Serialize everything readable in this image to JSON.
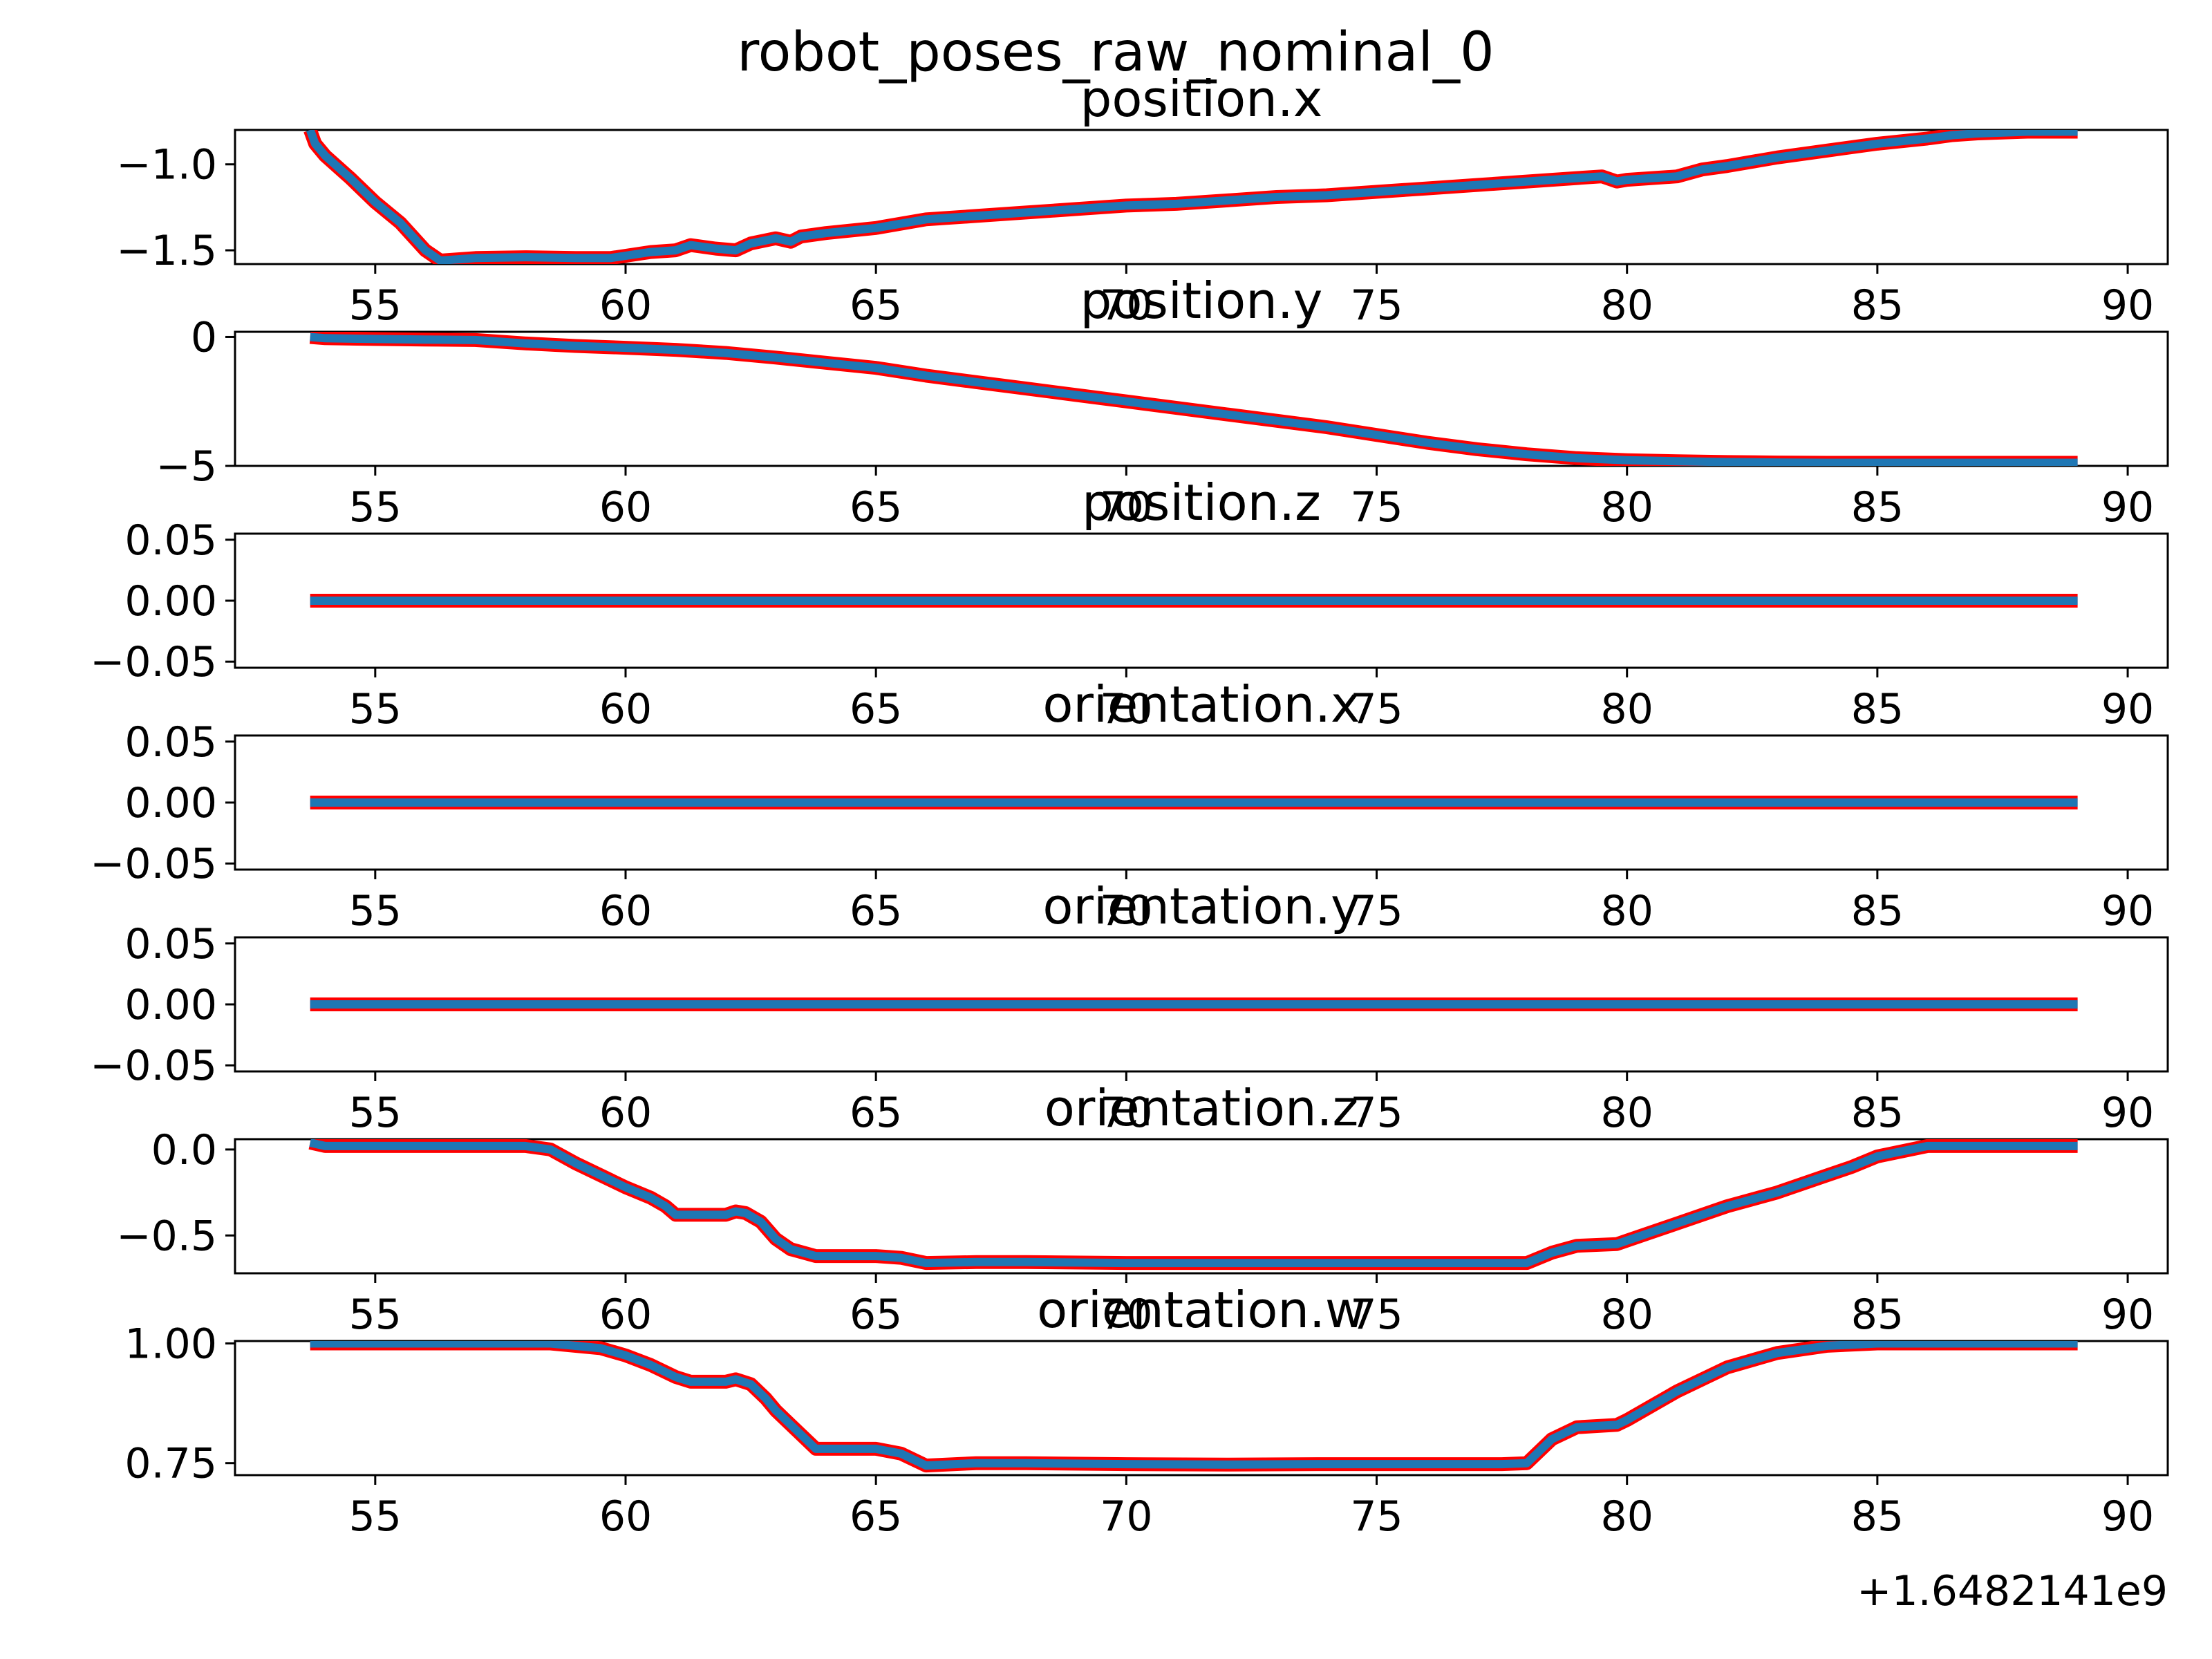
{
  "figure": {
    "suptitle": "robot_poses_raw_nominal_0",
    "x_offset_label": "+1.6482141e9"
  },
  "style": {
    "line_color": "#1f77b4",
    "outline_color": "#ff0000",
    "axes_color": "#000000",
    "background": "#ffffff"
  },
  "chart_data": [
    {
      "type": "line",
      "title": "position.x",
      "xlim": [
        52.2,
        90.8
      ],
      "ylim": [
        -1.58,
        -0.8
      ],
      "xticks": [
        55,
        60,
        65,
        70,
        75,
        80,
        85,
        90
      ],
      "yticks": [
        -1.0,
        -1.5
      ],
      "ytick_labels": [
        "−1.0",
        "−1.5"
      ],
      "series": [
        {
          "x": [
            53.7,
            53.8,
            54.0,
            54.5,
            55.0,
            55.5,
            56.0,
            56.3,
            57.0,
            58.0,
            59.0,
            59.7,
            60.5,
            61.0,
            61.3,
            61.8,
            62.2,
            62.5,
            63.0,
            63.3,
            63.5,
            64.0,
            65.0,
            66.0,
            67.0,
            68.0,
            69.0,
            70.0,
            71.0,
            72.0,
            73.0,
            74.0,
            75.0,
            76.0,
            77.0,
            78.0,
            79.0,
            79.5,
            79.8,
            80.0,
            81.0,
            81.5,
            82.0,
            83.0,
            84.0,
            85.0,
            86.0,
            86.5,
            87.0,
            88.0,
            89.0
          ],
          "y": [
            -0.8,
            -0.88,
            -0.95,
            -1.08,
            -1.22,
            -1.34,
            -1.5,
            -1.56,
            -1.545,
            -1.54,
            -1.545,
            -1.545,
            -1.51,
            -1.5,
            -1.47,
            -1.49,
            -1.5,
            -1.46,
            -1.43,
            -1.45,
            -1.42,
            -1.4,
            -1.37,
            -1.32,
            -1.3,
            -1.28,
            -1.26,
            -1.24,
            -1.23,
            -1.21,
            -1.19,
            -1.18,
            -1.16,
            -1.14,
            -1.12,
            -1.1,
            -1.08,
            -1.07,
            -1.1,
            -1.09,
            -1.07,
            -1.03,
            -1.01,
            -0.96,
            -0.92,
            -0.88,
            -0.85,
            -0.83,
            -0.82,
            -0.81,
            -0.81
          ]
        }
      ]
    },
    {
      "type": "line",
      "title": "position.y",
      "xlim": [
        52.2,
        90.8
      ],
      "ylim": [
        -5.0,
        0.2
      ],
      "xticks": [
        55,
        60,
        65,
        70,
        75,
        80,
        85,
        90
      ],
      "yticks": [
        0,
        -5
      ],
      "ytick_labels": [
        "0",
        "−5"
      ],
      "series": [
        {
          "x": [
            53.7,
            54.0,
            55.0,
            56.0,
            57.0,
            58.0,
            59.0,
            60.0,
            61.0,
            62.0,
            63.0,
            64.0,
            65.0,
            66.0,
            67.0,
            68.0,
            69.0,
            70.0,
            71.0,
            72.0,
            73.0,
            74.0,
            75.0,
            76.0,
            77.0,
            78.0,
            79.0,
            80.0,
            81.0,
            82.0,
            83.0,
            84.0,
            85.0,
            86.0,
            87.0,
            88.0,
            89.0
          ],
          "y": [
            0.0,
            -0.05,
            -0.08,
            -0.1,
            -0.12,
            -0.25,
            -0.35,
            -0.42,
            -0.5,
            -0.62,
            -0.8,
            -1.0,
            -1.2,
            -1.5,
            -1.75,
            -2.0,
            -2.25,
            -2.5,
            -2.75,
            -3.0,
            -3.25,
            -3.5,
            -3.8,
            -4.1,
            -4.35,
            -4.55,
            -4.7,
            -4.78,
            -4.82,
            -4.85,
            -4.87,
            -4.88,
            -4.88,
            -4.88,
            -4.88,
            -4.88,
            -4.88
          ]
        }
      ]
    },
    {
      "type": "line",
      "title": "position.z",
      "xlim": [
        52.2,
        90.8
      ],
      "ylim": [
        -0.055,
        0.055
      ],
      "xticks": [
        55,
        60,
        65,
        70,
        75,
        80,
        85,
        90
      ],
      "yticks": [
        0.05,
        0.0,
        -0.05
      ],
      "ytick_labels": [
        "0.05",
        "0.00",
        "−0.05"
      ],
      "series": [
        {
          "x": [
            53.7,
            89.0
          ],
          "y": [
            0.0,
            0.0
          ]
        }
      ]
    },
    {
      "type": "line",
      "title": "orientation.x",
      "xlim": [
        52.2,
        90.8
      ],
      "ylim": [
        -0.055,
        0.055
      ],
      "xticks": [
        55,
        60,
        65,
        70,
        75,
        80,
        85,
        90
      ],
      "yticks": [
        0.05,
        0.0,
        -0.05
      ],
      "ytick_labels": [
        "0.05",
        "0.00",
        "−0.05"
      ],
      "series": [
        {
          "x": [
            53.7,
            89.0
          ],
          "y": [
            0.0,
            0.0
          ]
        }
      ]
    },
    {
      "type": "line",
      "title": "orientation.y",
      "xlim": [
        52.2,
        90.8
      ],
      "ylim": [
        -0.055,
        0.055
      ],
      "xticks": [
        55,
        60,
        65,
        70,
        75,
        80,
        85,
        90
      ],
      "yticks": [
        0.05,
        0.0,
        -0.05
      ],
      "ytick_labels": [
        "0.05",
        "0.00",
        "−0.05"
      ],
      "series": [
        {
          "x": [
            53.7,
            89.0
          ],
          "y": [
            0.0,
            0.0
          ]
        }
      ]
    },
    {
      "type": "line",
      "title": "orientation.z",
      "xlim": [
        52.2,
        90.8
      ],
      "ylim": [
        -0.72,
        0.06
      ],
      "xticks": [
        55,
        60,
        65,
        70,
        75,
        80,
        85,
        90
      ],
      "yticks": [
        0.0,
        -0.5
      ],
      "ytick_labels": [
        "0.0",
        "−0.5"
      ],
      "series": [
        {
          "x": [
            53.7,
            54.0,
            55.0,
            56.0,
            57.0,
            58.0,
            58.5,
            59.0,
            59.5,
            60.0,
            60.5,
            60.8,
            61.0,
            61.3,
            62.0,
            62.2,
            62.4,
            62.7,
            63.0,
            63.3,
            63.8,
            64.0,
            65.0,
            65.5,
            66.0,
            67.0,
            68.0,
            70.0,
            72.0,
            74.0,
            76.0,
            77.5,
            78.0,
            78.5,
            79.0,
            79.8,
            80.0,
            81.0,
            82.0,
            83.0,
            84.0,
            84.5,
            85.0,
            86.0,
            87.0,
            88.0,
            89.0
          ],
          "y": [
            0.04,
            0.02,
            0.02,
            0.02,
            0.02,
            0.02,
            0.0,
            -0.08,
            -0.15,
            -0.22,
            -0.28,
            -0.33,
            -0.38,
            -0.38,
            -0.38,
            -0.36,
            -0.37,
            -0.42,
            -0.52,
            -0.58,
            -0.62,
            -0.62,
            -0.62,
            -0.63,
            -0.66,
            -0.655,
            -0.655,
            -0.66,
            -0.66,
            -0.66,
            -0.66,
            -0.66,
            -0.66,
            -0.6,
            -0.56,
            -0.55,
            -0.53,
            -0.43,
            -0.33,
            -0.25,
            -0.15,
            -0.1,
            -0.04,
            0.02,
            0.02,
            0.02,
            0.02
          ]
        }
      ]
    },
    {
      "type": "line",
      "title": "orientation.w",
      "xlim": [
        52.2,
        90.8
      ],
      "ylim": [
        0.725,
        1.005
      ],
      "xticks": [
        55,
        60,
        65,
        70,
        75,
        80,
        85,
        90
      ],
      "yticks": [
        1.0,
        0.75
      ],
      "ytick_labels": [
        "1.00",
        "0.75"
      ],
      "series": [
        {
          "x": [
            53.7,
            55.0,
            57.0,
            58.5,
            59.5,
            60.0,
            60.5,
            61.0,
            61.3,
            62.0,
            62.2,
            62.5,
            62.8,
            63.0,
            63.3,
            63.8,
            64.0,
            65.0,
            65.5,
            66.0,
            67.0,
            68.0,
            70.0,
            72.0,
            74.0,
            76.0,
            77.5,
            78.0,
            78.5,
            79.0,
            79.8,
            80.0,
            81.0,
            82.0,
            83.0,
            84.0,
            85.0,
            86.0,
            87.0,
            88.0,
            89.0
          ],
          "y": [
            1.0,
            1.0,
            1.0,
            1.0,
            0.99,
            0.975,
            0.955,
            0.93,
            0.92,
            0.92,
            0.925,
            0.915,
            0.885,
            0.86,
            0.83,
            0.78,
            0.78,
            0.78,
            0.77,
            0.745,
            0.75,
            0.75,
            0.748,
            0.747,
            0.748,
            0.748,
            0.748,
            0.75,
            0.8,
            0.825,
            0.83,
            0.84,
            0.9,
            0.95,
            0.98,
            0.995,
            1.0,
            1.0,
            1.0,
            1.0,
            1.0
          ]
        }
      ]
    }
  ]
}
